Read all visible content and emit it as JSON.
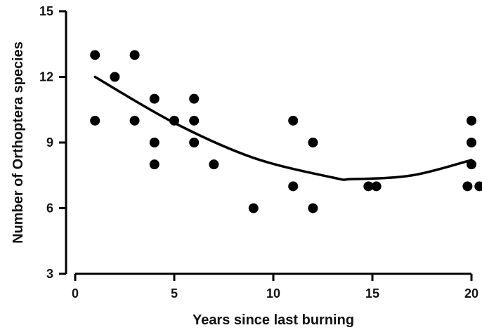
{
  "chart_data": {
    "type": "scatter",
    "title": "",
    "xlabel": "Years since last burning",
    "ylabel": "Number of Orthoptera species",
    "xlim": [
      0,
      20
    ],
    "ylim": [
      3,
      15
    ],
    "x_ticks": [
      0,
      5,
      10,
      15,
      20
    ],
    "y_ticks": [
      3,
      6,
      9,
      12,
      15
    ],
    "grid": false,
    "legend": "none",
    "points": [
      {
        "x": 1,
        "y": 13
      },
      {
        "x": 1,
        "y": 10
      },
      {
        "x": 2,
        "y": 12
      },
      {
        "x": 3,
        "y": 13
      },
      {
        "x": 3,
        "y": 10
      },
      {
        "x": 4,
        "y": 11
      },
      {
        "x": 4,
        "y": 9
      },
      {
        "x": 4,
        "y": 8
      },
      {
        "x": 5,
        "y": 10
      },
      {
        "x": 6,
        "y": 11
      },
      {
        "x": 6,
        "y": 10
      },
      {
        "x": 6,
        "y": 9
      },
      {
        "x": 7,
        "y": 8
      },
      {
        "x": 9,
        "y": 6
      },
      {
        "x": 11,
        "y": 10
      },
      {
        "x": 11,
        "y": 7
      },
      {
        "x": 12,
        "y": 9
      },
      {
        "x": 12,
        "y": 6
      },
      {
        "x": 14.8,
        "y": 7
      },
      {
        "x": 15.2,
        "y": 7
      },
      {
        "x": 20,
        "y": 10
      },
      {
        "x": 20,
        "y": 9
      },
      {
        "x": 20,
        "y": 8
      },
      {
        "x": 19.8,
        "y": 7
      },
      {
        "x": 20.4,
        "y": 7
      }
    ],
    "fit": {
      "type": "quadratic",
      "x_range": [
        1,
        20
      ],
      "points": [
        {
          "x": 1,
          "y": 12.0
        },
        {
          "x": 5,
          "y": 9.9
        },
        {
          "x": 9,
          "y": 8.3
        },
        {
          "x": 13,
          "y": 7.4
        },
        {
          "x": 14,
          "y": 7.33
        },
        {
          "x": 17,
          "y": 7.5
        },
        {
          "x": 20,
          "y": 8.2
        }
      ]
    },
    "colors": {
      "points": "#000000",
      "fit": "#000000",
      "axes": "#000000"
    }
  }
}
